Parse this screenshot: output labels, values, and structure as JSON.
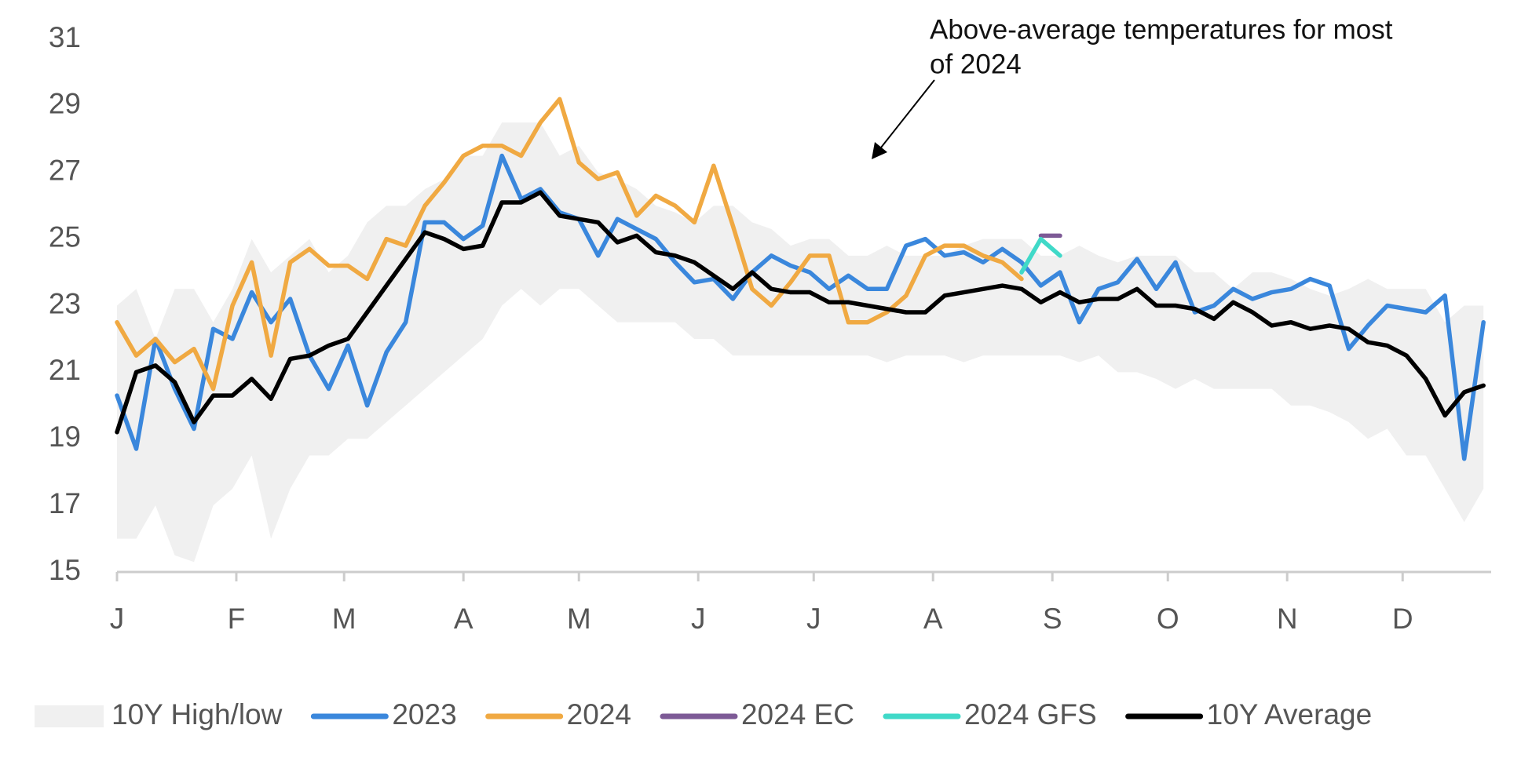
{
  "chart_data": {
    "type": "line",
    "annotation": [
      "Above-average temperatures for most",
      "of 2024"
    ],
    "x": [
      1,
      6,
      11,
      16,
      21,
      26,
      31,
      36,
      41,
      46,
      51,
      56,
      61,
      66,
      71,
      76,
      81,
      86,
      91,
      96,
      101,
      106,
      111,
      116,
      121,
      126,
      131,
      136,
      141,
      146,
      151,
      156,
      161,
      166,
      171,
      176,
      181,
      186,
      191,
      196,
      201,
      206,
      211,
      216,
      221,
      226,
      231,
      236,
      241,
      246,
      251,
      256,
      261,
      266,
      271,
      276,
      281,
      286,
      291,
      296,
      301,
      306,
      311,
      316,
      321,
      326,
      331,
      336,
      341,
      346,
      351,
      356
    ],
    "xlim": [
      1,
      358
    ],
    "xticks": [
      {
        "value": 1,
        "label": "J"
      },
      {
        "value": 32,
        "label": "F"
      },
      {
        "value": 60,
        "label": "M"
      },
      {
        "value": 91,
        "label": "A"
      },
      {
        "value": 121,
        "label": "M"
      },
      {
        "value": 152,
        "label": "J"
      },
      {
        "value": 182,
        "label": "J"
      },
      {
        "value": 213,
        "label": "A"
      },
      {
        "value": 244,
        "label": "S"
      },
      {
        "value": 274,
        "label": "O"
      },
      {
        "value": 305,
        "label": "N"
      },
      {
        "value": 335,
        "label": "D"
      }
    ],
    "ylim": [
      15,
      31
    ],
    "yticks": [
      15,
      17,
      19,
      21,
      23,
      25,
      27,
      29,
      31
    ],
    "grid": false,
    "legend": "bottom",
    "band": {
      "name": "10Y High/low",
      "color": "#f0f0f0",
      "high": [
        23,
        23.5,
        22,
        23.5,
        23.5,
        22.5,
        23.5,
        25,
        24,
        24.5,
        25,
        24,
        24.5,
        25.5,
        26,
        26,
        26.5,
        26.8,
        27.5,
        27.5,
        28.5,
        28.5,
        28.5,
        27.5,
        27.8,
        27,
        26.8,
        26.5,
        26,
        25.8,
        25.5,
        26,
        26,
        25.5,
        25.3,
        24.8,
        25,
        25,
        24.5,
        24.5,
        24.8,
        24.5,
        24.5,
        24.5,
        24.8,
        25,
        25,
        25,
        24.5,
        24.5,
        24.8,
        24.5,
        24.3,
        24.5,
        24.5,
        24.5,
        24,
        24,
        23.5,
        24,
        24,
        23.8,
        23.5,
        23.3,
        23.5,
        23.8,
        23.5,
        23.5,
        23.5,
        22.5,
        23,
        23
      ],
      "low": [
        16,
        16,
        17,
        15.5,
        15.3,
        17,
        17.5,
        18.5,
        16,
        17.5,
        18.5,
        18.5,
        19,
        19,
        19.5,
        20,
        20.5,
        21,
        21.5,
        22,
        23,
        23.5,
        23,
        23.5,
        23.5,
        23,
        22.5,
        22.5,
        22.5,
        22.5,
        22,
        22,
        21.5,
        21.5,
        21.5,
        21.5,
        21.5,
        21.5,
        21.5,
        21.5,
        21.3,
        21.5,
        21.5,
        21.5,
        21.3,
        21.5,
        21.5,
        21.5,
        21.5,
        21.5,
        21.3,
        21.5,
        21,
        21,
        20.8,
        20.5,
        20.8,
        20.5,
        20.5,
        20.5,
        20.5,
        20,
        20,
        19.8,
        19.5,
        19,
        19.3,
        18.5,
        18.5,
        17.5,
        16.5,
        17.5
      ]
    },
    "series": [
      {
        "name": "2023",
        "color": "#3a87dc",
        "values": [
          20.3,
          18.7,
          22,
          20.5,
          19.3,
          22.3,
          22,
          23.4,
          22.5,
          23.2,
          21.5,
          20.5,
          21.8,
          20,
          21.6,
          22.5,
          25.5,
          25.5,
          25,
          25.4,
          27.5,
          26.2,
          26.5,
          25.8,
          25.6,
          24.5,
          25.6,
          25.3,
          25,
          24.3,
          23.7,
          23.8,
          23.2,
          24,
          24.5,
          24.2,
          24,
          23.5,
          23.9,
          23.5,
          23.5,
          24.8,
          25,
          24.5,
          24.6,
          24.3,
          24.7,
          24.3,
          23.6,
          24,
          22.5,
          23.5,
          23.7,
          24.4,
          23.5,
          24.3,
          22.8,
          23,
          23.5,
          23.2,
          23.4,
          23.5,
          23.8,
          23.6,
          21.7,
          22.4,
          23,
          22.9,
          22.8,
          23.3,
          18.4,
          22.5
        ]
      },
      {
        "name": "2024",
        "color": "#f0a942",
        "values": [
          22.5,
          21.5,
          22,
          21.3,
          21.7,
          20.5,
          23,
          24.3,
          21.5,
          24.3,
          24.7,
          24.2,
          24.2,
          23.8,
          25,
          24.8,
          26,
          26.7,
          27.5,
          27.8,
          27.8,
          27.5,
          28.5,
          29.2,
          27.3,
          26.8,
          27,
          25.7,
          26.3,
          26,
          25.5,
          27.2,
          25.4,
          23.5,
          23,
          23.7,
          24.5,
          24.5,
          22.5,
          22.5,
          22.8,
          23.3,
          24.5,
          24.8,
          24.8,
          24.5,
          24.3,
          23.8,
          null,
          null,
          null,
          null,
          null,
          null,
          null,
          null,
          null,
          null,
          null,
          null,
          null,
          null,
          null,
          null,
          null,
          null,
          null,
          null,
          null,
          null,
          null,
          null
        ]
      },
      {
        "name": "2024 EC",
        "color": "#7d5a96",
        "values": [
          null,
          null,
          null,
          null,
          null,
          null,
          null,
          null,
          null,
          null,
          null,
          null,
          null,
          null,
          null,
          null,
          null,
          null,
          null,
          null,
          null,
          null,
          null,
          null,
          null,
          null,
          null,
          null,
          null,
          null,
          null,
          null,
          null,
          null,
          null,
          null,
          null,
          null,
          null,
          null,
          null,
          null,
          null,
          null,
          null,
          null,
          null,
          null,
          25.1,
          25.1,
          null,
          null,
          null,
          null,
          null,
          null,
          null,
          null,
          null,
          null,
          null,
          null,
          null,
          null,
          null,
          null,
          null,
          null,
          null,
          null,
          null,
          null
        ]
      },
      {
        "name": "2024 GFS",
        "color": "#40d9c8",
        "values": [
          null,
          null,
          null,
          null,
          null,
          null,
          null,
          null,
          null,
          null,
          null,
          null,
          null,
          null,
          null,
          null,
          null,
          null,
          null,
          null,
          null,
          null,
          null,
          null,
          null,
          null,
          null,
          null,
          null,
          null,
          null,
          null,
          null,
          null,
          null,
          null,
          null,
          null,
          null,
          null,
          null,
          null,
          null,
          null,
          null,
          null,
          null,
          24.0,
          25.0,
          24.5,
          null,
          null,
          null,
          null,
          null,
          null,
          null,
          null,
          null,
          null,
          null,
          null,
          null,
          null,
          null,
          null,
          null,
          null,
          null,
          null,
          null,
          null
        ]
      },
      {
        "name": "10Y Average",
        "color": "#000000",
        "values": [
          19.2,
          21,
          21.2,
          20.7,
          19.5,
          20.3,
          20.3,
          20.8,
          20.2,
          21.4,
          21.5,
          21.8,
          22,
          22.8,
          23.6,
          24.4,
          25.2,
          25,
          24.7,
          24.8,
          26.1,
          26.1,
          26.4,
          25.7,
          25.6,
          25.5,
          24.9,
          25.1,
          24.6,
          24.5,
          24.3,
          23.9,
          23.5,
          24,
          23.5,
          23.4,
          23.4,
          23.1,
          23.1,
          23,
          22.9,
          22.8,
          22.8,
          23.3,
          23.4,
          23.5,
          23.6,
          23.5,
          23.1,
          23.4,
          23.1,
          23.2,
          23.2,
          23.5,
          23,
          23,
          22.9,
          22.6,
          23.1,
          22.8,
          22.4,
          22.5,
          22.3,
          22.4,
          22.3,
          21.9,
          21.8,
          21.5,
          20.8,
          19.7,
          20.4,
          20.6
        ]
      }
    ]
  }
}
